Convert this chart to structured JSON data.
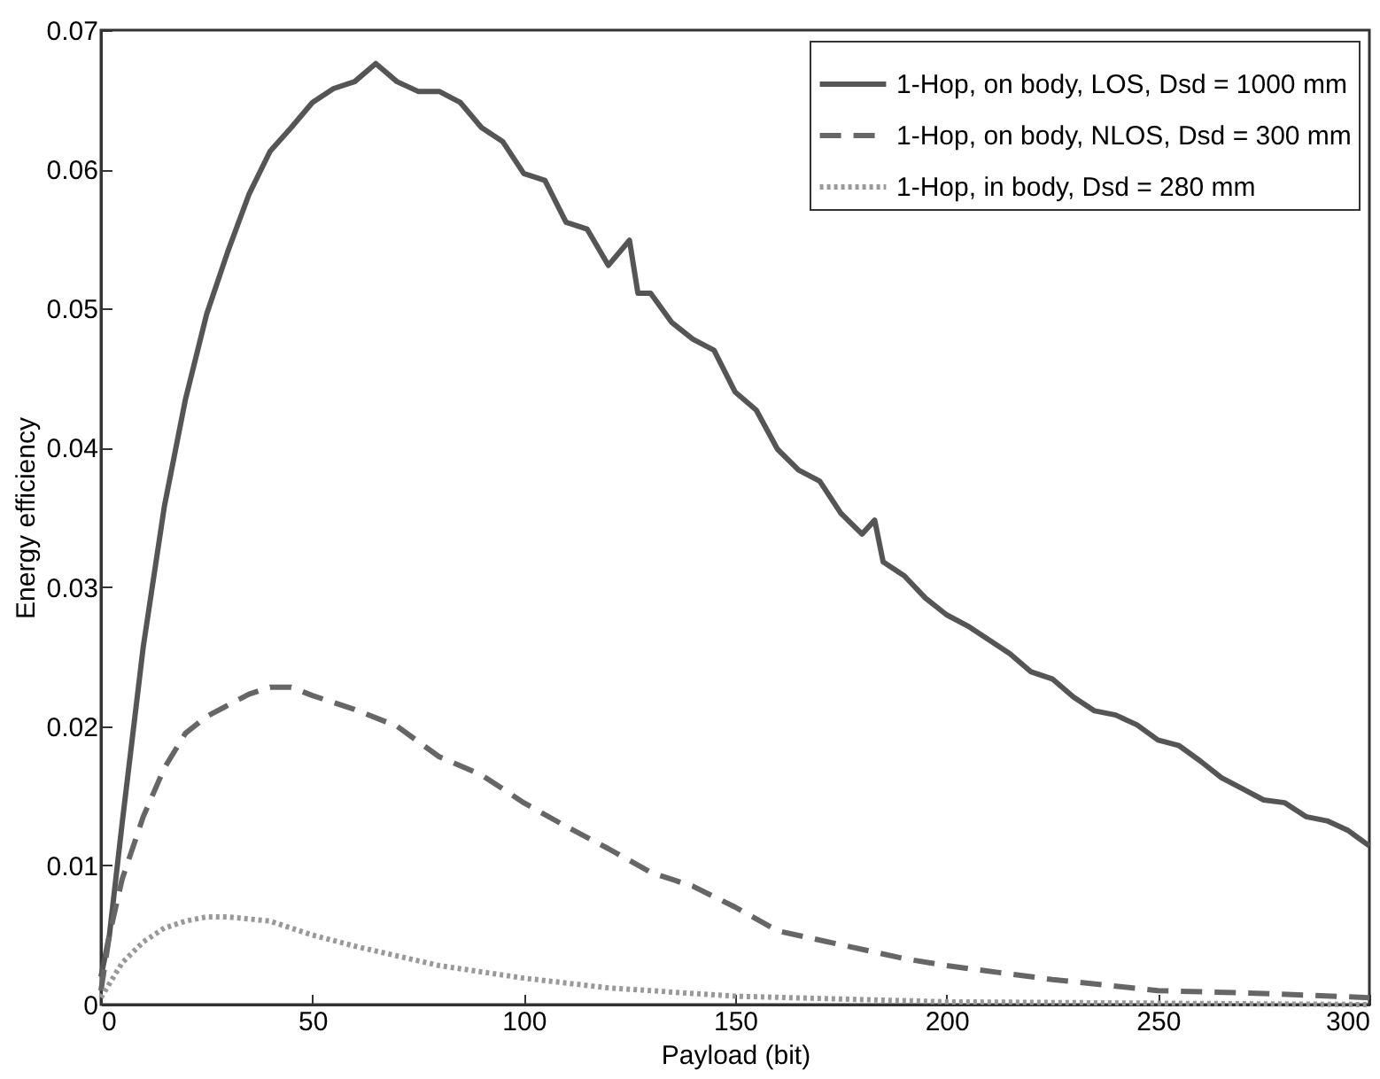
{
  "chart_data": {
    "type": "line",
    "xlabel": "Payload (bit)",
    "ylabel": "Energy efficiency",
    "xlim": [
      0,
      300
    ],
    "ylim": [
      0,
      0.07
    ],
    "xticks": [
      0,
      50,
      100,
      150,
      200,
      250,
      300
    ],
    "yticks": [
      0,
      0.01,
      0.02,
      0.03,
      0.04,
      0.05,
      0.06,
      0.07
    ],
    "grid": false,
    "legend": "top right",
    "marker": "none",
    "series": [
      {
        "name": "1-Hop, on body, LOS, Dsd = 1000 mm",
        "color": "#555555",
        "line_style": "solid",
        "x": [
          0,
          2,
          5,
          10,
          15,
          20,
          25,
          30,
          35,
          40,
          45,
          50,
          55,
          60,
          65,
          70,
          75,
          80,
          85,
          90,
          95,
          100,
          105,
          110,
          115,
          120,
          125,
          127,
          130,
          135,
          140,
          145,
          150,
          155,
          160,
          165,
          170,
          175,
          180,
          183,
          185,
          190,
          195,
          200,
          205,
          210,
          215,
          220,
          225,
          230,
          235,
          240,
          245,
          250,
          255,
          260,
          265,
          270,
          275,
          280,
          285,
          290,
          295,
          300
        ],
        "values": [
          0.002,
          0.005,
          0.013,
          0.0257,
          0.0358,
          0.0435,
          0.0496,
          0.0541,
          0.0582,
          0.0613,
          0.063,
          0.0648,
          0.0658,
          0.0663,
          0.0676,
          0.0663,
          0.0656,
          0.0656,
          0.0648,
          0.063,
          0.062,
          0.0597,
          0.0592,
          0.0562,
          0.0557,
          0.0531,
          0.0549,
          0.0511,
          0.0511,
          0.049,
          0.0478,
          0.047,
          0.044,
          0.0427,
          0.0399,
          0.0384,
          0.0376,
          0.0353,
          0.0338,
          0.0348,
          0.0318,
          0.0308,
          0.0292,
          0.028,
          0.0272,
          0.0262,
          0.0252,
          0.0239,
          0.0234,
          0.0221,
          0.0211,
          0.0208,
          0.0201,
          0.019,
          0.0186,
          0.0175,
          0.0163,
          0.0155,
          0.0147,
          0.0145,
          0.0135,
          0.0132,
          0.0125,
          0.0114
        ]
      },
      {
        "name": "1-Hop, on body, NLOS, Dsd = 300 mm",
        "color": "#666666",
        "line_style": "dashed",
        "x": [
          0,
          2,
          5,
          10,
          15,
          20,
          25,
          30,
          35,
          40,
          45,
          50,
          60,
          70,
          80,
          90,
          100,
          110,
          120,
          130,
          140,
          150,
          160,
          175,
          190,
          200,
          225,
          250,
          275,
          300
        ],
        "values": [
          0.001,
          0.005,
          0.009,
          0.0135,
          0.017,
          0.0195,
          0.0207,
          0.0215,
          0.0223,
          0.0228,
          0.0228,
          0.0222,
          0.0212,
          0.02,
          0.0178,
          0.0165,
          0.0145,
          0.0128,
          0.0112,
          0.0095,
          0.0085,
          0.007,
          0.0053,
          0.0043,
          0.0033,
          0.0028,
          0.0018,
          0.001,
          0.0008,
          0.0005
        ]
      },
      {
        "name": "1-Hop, in body, Dsd = 280 mm",
        "color": "#999999",
        "line_style": "dotted",
        "x": [
          0,
          5,
          10,
          15,
          20,
          25,
          30,
          40,
          50,
          60,
          70,
          80,
          100,
          120,
          150,
          200,
          250,
          300
        ],
        "values": [
          0.0005,
          0.003,
          0.0045,
          0.0055,
          0.006,
          0.0063,
          0.0063,
          0.006,
          0.005,
          0.0042,
          0.0035,
          0.0028,
          0.0019,
          0.0012,
          0.0006,
          0.0002,
          0.0001,
          0
        ]
      }
    ]
  }
}
